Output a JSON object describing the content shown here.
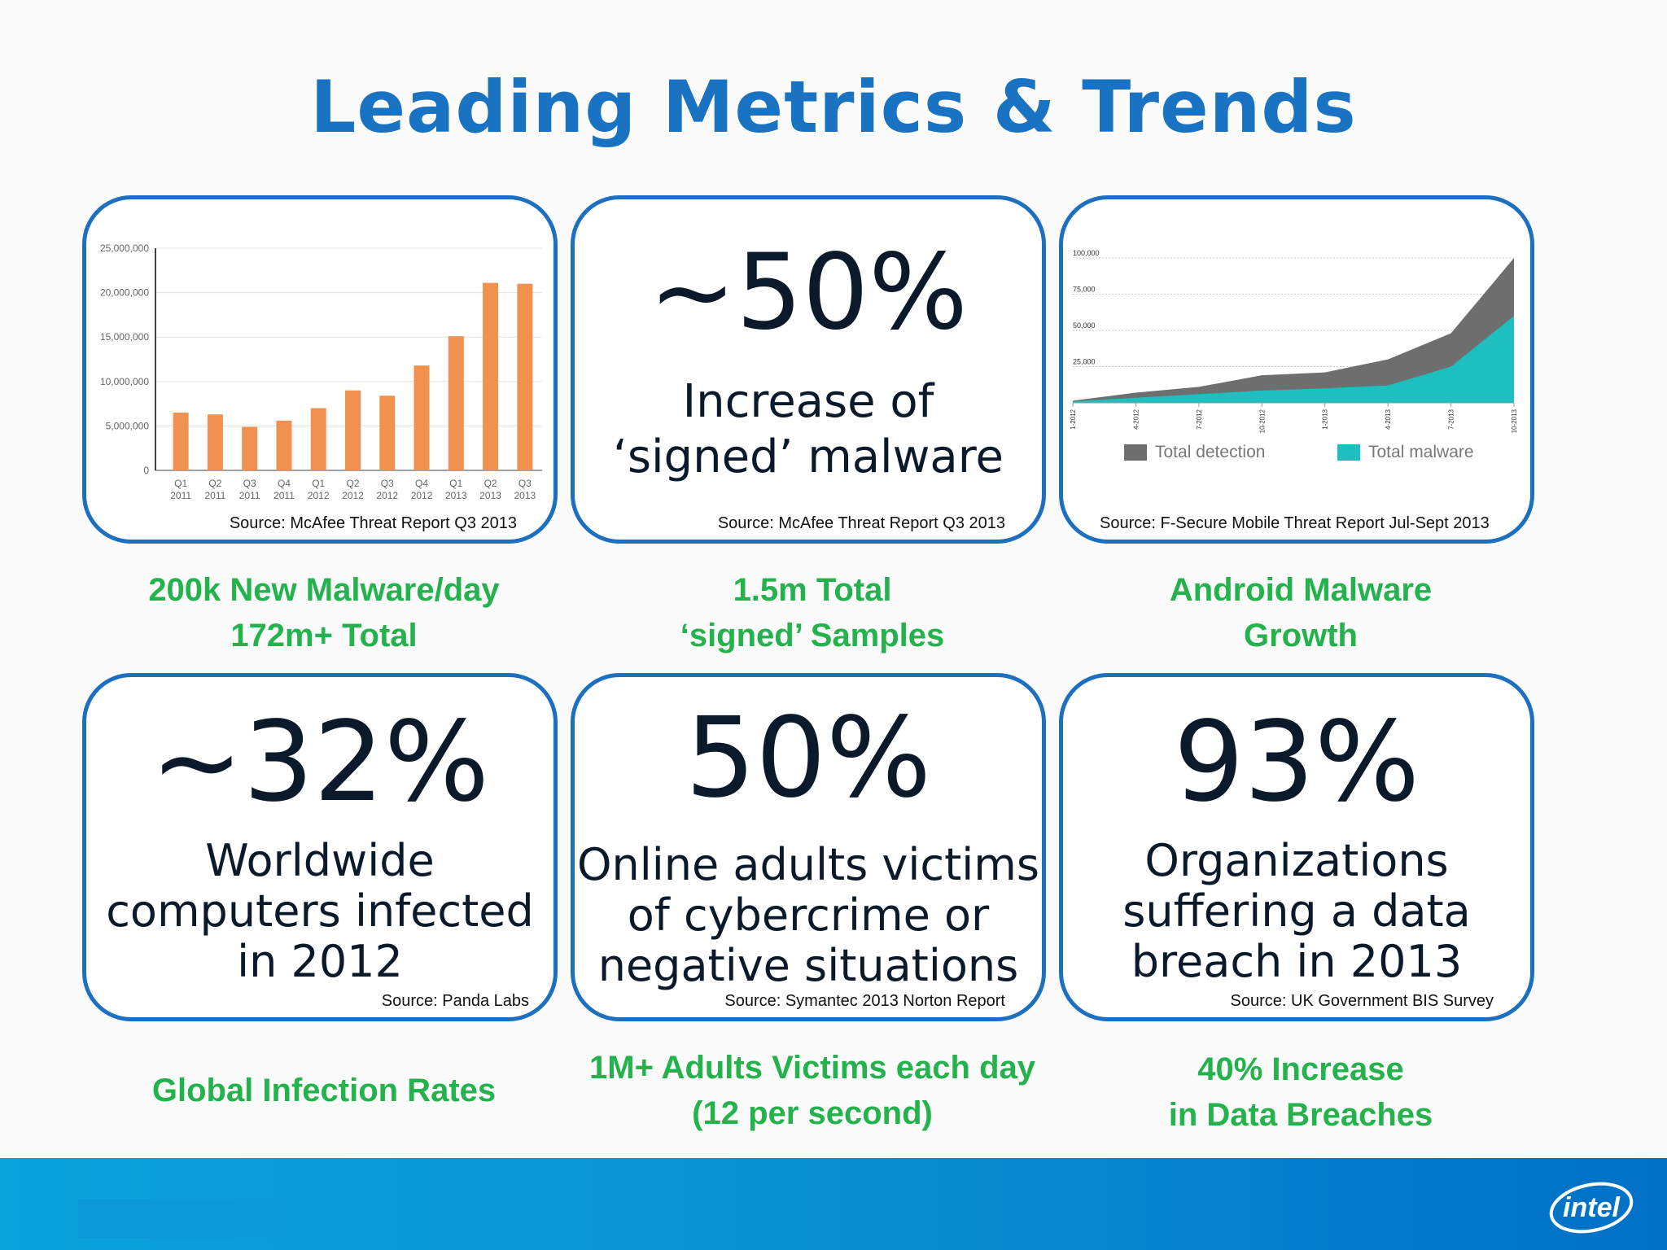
{
  "title": "Leading Metrics & Trends",
  "panels": {
    "malware_chart": {
      "source": "Source: McAfee Threat Report Q3 2013"
    },
    "signed": {
      "value": "~50%",
      "desc": "Increase of\n‘signed’ malware",
      "source": "Source: McAfee Threat Report Q3 2013"
    },
    "android_chart": {
      "source": "Source: F-Secure Mobile Threat Report Jul-Sept 2013"
    },
    "infected": {
      "value": "~32%",
      "desc": "Worldwide\ncomputers infected\nin 2012",
      "source": "Source: Panda Labs"
    },
    "victims": {
      "value": "50%",
      "desc": "Online adults victims\nof cybercrime or\nnegative situations",
      "source": "Source: Symantec 2013 Norton Report"
    },
    "breach": {
      "value": "93%",
      "desc": "Organizations\nsuffering a data\nbreach in 2013",
      "source": "Source: UK Government BIS Survey"
    }
  },
  "captions": {
    "c1": "200k New Malware/day\n172m+ Total",
    "c2": "1.5m Total\n‘signed’ Samples",
    "c3": "Android Malware\nGrowth",
    "c4": "Global Infection Rates",
    "c5": "1M+ Adults Victims each day\n(12 per second)",
    "c6": "40% Increase\nin Data Breaches"
  },
  "logo_text": "intel",
  "colors": {
    "title": "#1a72c2",
    "caption": "#23b24b",
    "border": "#1d6fbf",
    "bar": "#f0914f",
    "detection": "#6e6e6e",
    "malware": "#1dbfbf"
  },
  "chart_data": [
    {
      "type": "bar",
      "categories": [
        [
          "Q1",
          "2011"
        ],
        [
          "Q2",
          "2011"
        ],
        [
          "Q3",
          "2011"
        ],
        [
          "Q4",
          "2011"
        ],
        [
          "Q1",
          "2012"
        ],
        [
          "Q2",
          "2012"
        ],
        [
          "Q3",
          "2012"
        ],
        [
          "Q4",
          "2012"
        ],
        [
          "Q1",
          "2013"
        ],
        [
          "Q2",
          "2013"
        ],
        [
          "Q3",
          "2013"
        ]
      ],
      "values": [
        6500000,
        6300000,
        4900000,
        5600000,
        7000000,
        9000000,
        8400000,
        11800000,
        15100000,
        21100000,
        21000000
      ],
      "ylim": [
        0,
        25000000
      ],
      "yticks": [
        0,
        5000000,
        10000000,
        15000000,
        20000000,
        25000000
      ],
      "ytick_labels": [
        "0",
        "5,000,000",
        "10,000,000",
        "15,000,000",
        "20,000,000",
        "25,000,000"
      ],
      "grid": true
    },
    {
      "type": "area",
      "x": [
        "1-2012",
        "4-2012",
        "7-2012",
        "10-2012",
        "1-2013",
        "4-2013",
        "7-2013",
        "10-2013"
      ],
      "series": [
        {
          "name": "Total detection",
          "values": [
            1500,
            7000,
            11000,
            19000,
            21000,
            30000,
            48000,
            100000
          ]
        },
        {
          "name": "Total malware",
          "values": [
            1000,
            3500,
            6000,
            8500,
            10000,
            12000,
            25000,
            60000
          ]
        }
      ],
      "ylim": [
        0,
        100000
      ],
      "yticks": [
        25000,
        50000,
        75000,
        100000
      ],
      "ytick_labels": [
        "25,000",
        "50,000",
        "75,000",
        "100,000"
      ],
      "grid": true,
      "legend": "bottom"
    }
  ]
}
